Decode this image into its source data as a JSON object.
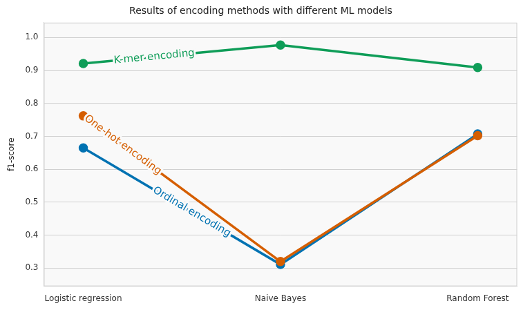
{
  "chart_data": {
    "type": "line",
    "title": "Results of encoding methods with different ML models",
    "y_label": "f1-score",
    "categories": [
      "Logistic regression",
      "Naive Bayes",
      "Random Forest"
    ],
    "series": [
      {
        "name": "K-mer encoding",
        "color": "#0f9d58",
        "values": [
          0.921,
          0.977,
          0.909
        ]
      },
      {
        "name": "One-hot encoding",
        "color": "#d55e00",
        "values": [
          0.762,
          0.32,
          0.702
        ]
      },
      {
        "name": "Ordinal encoding",
        "color": "#0072b2",
        "values": [
          0.665,
          0.311,
          0.707
        ]
      }
    ],
    "ylim": [
      0.245,
      1.045
    ],
    "yticks": [
      0.3,
      0.4,
      0.5,
      0.6,
      0.7,
      0.8,
      0.9,
      {
        "value": 1,
        "label": "1.0"
      }
    ],
    "grid": true,
    "marker": "circle"
  }
}
